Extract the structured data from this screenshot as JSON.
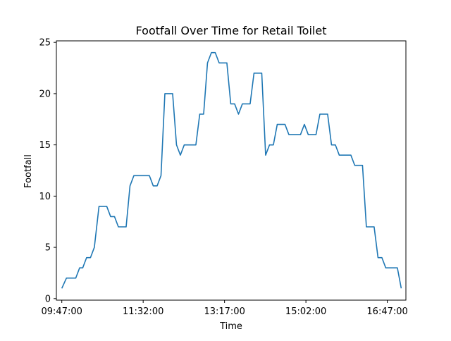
{
  "chart_data": {
    "type": "line",
    "title": "Footfall Over Time for Retail Toilet",
    "xlabel": "Time",
    "ylabel": "Footfall",
    "x_tick_labels": [
      "09:47:00",
      "11:32:00",
      "13:17:00",
      "15:02:00",
      "16:47:00"
    ],
    "x_tick_values_minutes": [
      587,
      692,
      797,
      902,
      1007
    ],
    "y_ticks": [
      0,
      5,
      10,
      15,
      20,
      25
    ],
    "xlim_minutes": [
      580,
      1031
    ],
    "ylim": [
      -0.15,
      25.15
    ],
    "grid": false,
    "line_color": "#1f77b4",
    "x_minutes": [
      587,
      593,
      600,
      605,
      610,
      614,
      619,
      624,
      629,
      635,
      640,
      645,
      650,
      655,
      660,
      665,
      670,
      675,
      680,
      685,
      690,
      695,
      700,
      705,
      710,
      715,
      720,
      725,
      730,
      735,
      740,
      745,
      750,
      755,
      760,
      765,
      770,
      775,
      780,
      785,
      790,
      795,
      800,
      805,
      810,
      815,
      820,
      825,
      830,
      835,
      840,
      845,
      850,
      855,
      860,
      865,
      870,
      875,
      880,
      885,
      890,
      895,
      900,
      905,
      910,
      915,
      920,
      925,
      930,
      935,
      940,
      945,
      950,
      955,
      960,
      965,
      970,
      975,
      980,
      985,
      990,
      995,
      1000,
      1005,
      1010,
      1015,
      1020,
      1025
    ],
    "values": [
      1,
      2,
      2,
      2,
      3,
      3,
      4,
      4,
      5,
      9,
      9,
      9,
      8,
      8,
      7,
      7,
      7,
      11,
      12,
      12,
      12,
      12,
      12,
      11,
      11,
      12,
      20,
      20,
      20,
      15,
      14,
      15,
      15,
      15,
      15,
      18,
      18,
      23,
      24,
      24,
      23,
      23,
      23,
      19,
      19,
      18,
      19,
      19,
      19,
      22,
      22,
      22,
      14,
      15,
      15,
      17,
      17,
      17,
      16,
      16,
      16,
      16,
      17,
      16,
      16,
      16,
      18,
      18,
      18,
      15,
      15,
      14,
      14,
      14,
      14,
      13,
      13,
      13,
      7,
      7,
      7,
      4,
      4,
      3,
      3,
      3,
      3,
      1
    ]
  }
}
